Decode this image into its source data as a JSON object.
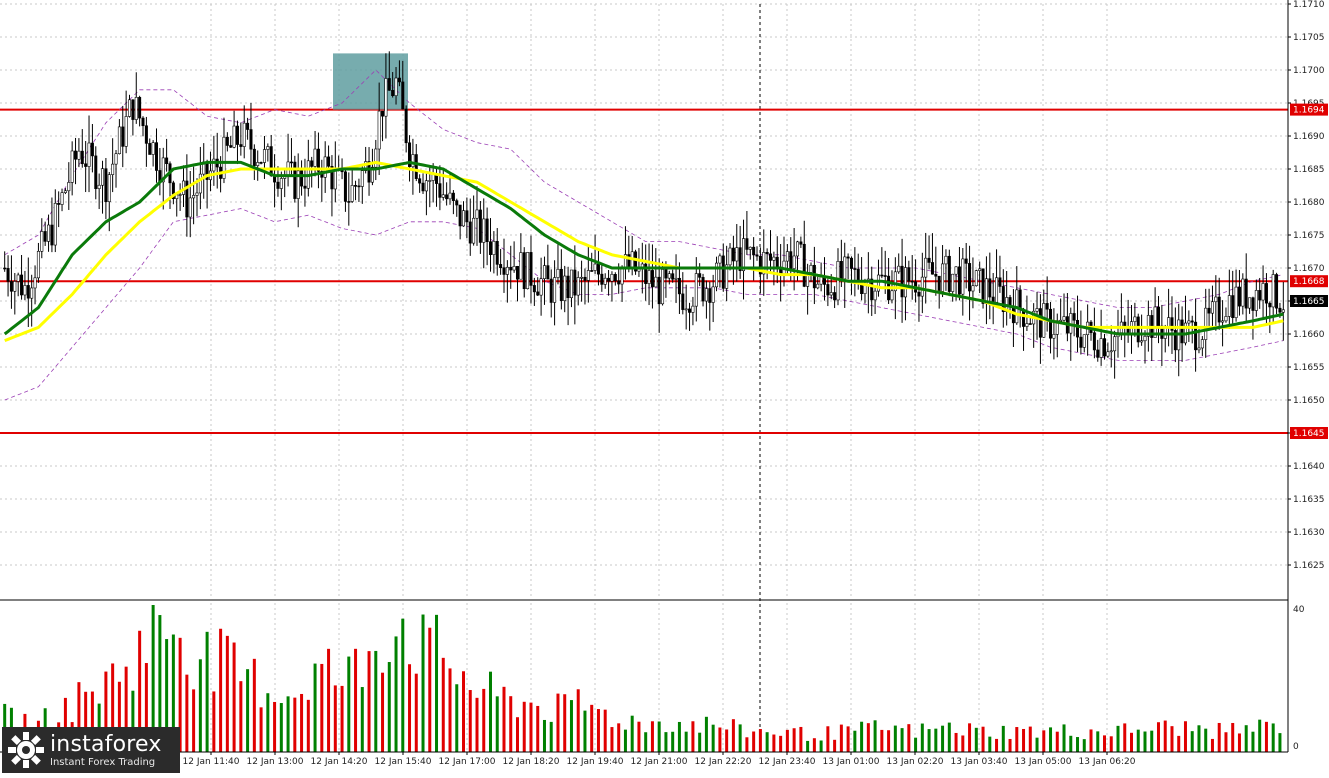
{
  "chart_data": [
    {
      "type": "candlestick",
      "instrument": "",
      "price_axis": {
        "min": 1.162,
        "max": 1.171,
        "ticks": [
          "1.1710",
          "1.1705",
          "1.1700",
          "1.1695",
          "1.1690",
          "1.1685",
          "1.1680",
          "1.1675",
          "1.1670",
          "1.1665",
          "1.1660",
          "1.1655",
          "1.1650",
          "1.1645",
          "1.1640",
          "1.1635",
          "1.1630",
          "1.1625"
        ]
      },
      "time_axis": {
        "ticks": [
          "12 Jan 11:40",
          "12 Jan 13:00",
          "12 Jan 14:20",
          "12 Jan 15:40",
          "12 Jan 17:00",
          "12 Jan 18:20",
          "12 Jan 19:40",
          "12 Jan 21:00",
          "12 Jan 22:20",
          "12 Jan 23:40",
          "13 Jan 01:00",
          "13 Jan 02:20",
          "13 Jan 03:40",
          "13 Jan 05:00",
          "13 Jan 06:20"
        ]
      },
      "horizontal_levels": [
        {
          "price": 1.1694,
          "label": "1.1694",
          "color": "#e00000"
        },
        {
          "price": 1.1668,
          "label": "1.1668",
          "color": "#e00000"
        },
        {
          "price": 1.1645,
          "label": "1.1645",
          "color": "#e00000"
        }
      ],
      "current_price": {
        "price": 1.1665,
        "label": "1.1665"
      },
      "highlight_zone": {
        "time_from": "12 Jan 14:45",
        "time_to": "12 Jan 15:55",
        "price_from": 1.1694,
        "price_to": 1.1701,
        "color": "#5f9ea0"
      },
      "vertical_marker": {
        "time": "12 Jan 23:40",
        "style": "dashed"
      },
      "close_path": [
        [
          0,
          1.167
        ],
        [
          6,
          1.1667
        ],
        [
          14,
          1.1676
        ],
        [
          22,
          1.1688
        ],
        [
          30,
          1.1683
        ],
        [
          38,
          1.1695
        ],
        [
          46,
          1.1686
        ],
        [
          54,
          1.168
        ],
        [
          62,
          1.1685
        ],
        [
          70,
          1.169
        ],
        [
          78,
          1.1686
        ],
        [
          86,
          1.1683
        ],
        [
          94,
          1.1686
        ],
        [
          102,
          1.1681
        ],
        [
          108,
          1.1686
        ],
        [
          112,
          1.1695
        ],
        [
          116,
          1.1698
        ],
        [
          120,
          1.1688
        ],
        [
          124,
          1.1684
        ],
        [
          128,
          1.1683
        ],
        [
          134,
          1.1678
        ],
        [
          140,
          1.1676
        ],
        [
          148,
          1.1672
        ],
        [
          156,
          1.1669
        ],
        [
          162,
          1.1667
        ],
        [
          170,
          1.1667
        ],
        [
          178,
          1.167
        ],
        [
          186,
          1.167
        ],
        [
          194,
          1.1667
        ],
        [
          202,
          1.1666
        ],
        [
          210,
          1.1668
        ],
        [
          218,
          1.1672
        ],
        [
          226,
          1.1671
        ],
        [
          234,
          1.1672
        ],
        [
          242,
          1.1667
        ],
        [
          250,
          1.1669
        ],
        [
          258,
          1.1668
        ],
        [
          266,
          1.1668
        ],
        [
          274,
          1.1669
        ],
        [
          282,
          1.1669
        ],
        [
          290,
          1.1667
        ],
        [
          298,
          1.1665
        ],
        [
          306,
          1.1662
        ],
        [
          314,
          1.1661
        ],
        [
          320,
          1.166
        ],
        [
          326,
          1.1659
        ],
        [
          332,
          1.166
        ],
        [
          338,
          1.1662
        ],
        [
          344,
          1.1661
        ],
        [
          350,
          1.166
        ],
        [
          356,
          1.1661
        ],
        [
          362,
          1.1665
        ],
        [
          368,
          1.1666
        ],
        [
          374,
          1.1667
        ],
        [
          379,
          1.1665
        ]
      ],
      "ma_green_path": [
        [
          0,
          1.166
        ],
        [
          10,
          1.1664
        ],
        [
          20,
          1.1672
        ],
        [
          30,
          1.1677
        ],
        [
          40,
          1.168
        ],
        [
          50,
          1.1685
        ],
        [
          60,
          1.1686
        ],
        [
          70,
          1.1686
        ],
        [
          80,
          1.1684
        ],
        [
          90,
          1.1684
        ],
        [
          100,
          1.1685
        ],
        [
          110,
          1.1685
        ],
        [
          120,
          1.1686
        ],
        [
          130,
          1.1685
        ],
        [
          140,
          1.1682
        ],
        [
          150,
          1.1679
        ],
        [
          160,
          1.1675
        ],
        [
          170,
          1.1672
        ],
        [
          180,
          1.167
        ],
        [
          190,
          1.167
        ],
        [
          200,
          1.167
        ],
        [
          210,
          1.167
        ],
        [
          220,
          1.167
        ],
        [
          230,
          1.167
        ],
        [
          240,
          1.1669
        ],
        [
          250,
          1.1668
        ],
        [
          260,
          1.1668
        ],
        [
          270,
          1.1667
        ],
        [
          280,
          1.1666
        ],
        [
          290,
          1.1665
        ],
        [
          300,
          1.1664
        ],
        [
          310,
          1.1662
        ],
        [
          320,
          1.1661
        ],
        [
          330,
          1.166
        ],
        [
          340,
          1.166
        ],
        [
          350,
          1.166
        ],
        [
          360,
          1.1661
        ],
        [
          370,
          1.1662
        ],
        [
          379,
          1.1663
        ]
      ],
      "ma_yellow_path": [
        [
          0,
          1.1659
        ],
        [
          10,
          1.1661
        ],
        [
          20,
          1.1666
        ],
        [
          30,
          1.1672
        ],
        [
          40,
          1.1677
        ],
        [
          50,
          1.1681
        ],
        [
          60,
          1.1684
        ],
        [
          70,
          1.1685
        ],
        [
          80,
          1.1685
        ],
        [
          90,
          1.1685
        ],
        [
          100,
          1.1685
        ],
        [
          110,
          1.1686
        ],
        [
          120,
          1.1685
        ],
        [
          130,
          1.1684
        ],
        [
          140,
          1.1683
        ],
        [
          150,
          1.168
        ],
        [
          160,
          1.1677
        ],
        [
          170,
          1.1674
        ],
        [
          180,
          1.1672
        ],
        [
          190,
          1.1671
        ],
        [
          200,
          1.167
        ],
        [
          210,
          1.167
        ],
        [
          220,
          1.167
        ],
        [
          230,
          1.1669
        ],
        [
          240,
          1.1669
        ],
        [
          250,
          1.1668
        ],
        [
          260,
          1.1667
        ],
        [
          270,
          1.1667
        ],
        [
          280,
          1.1666
        ],
        [
          290,
          1.1665
        ],
        [
          300,
          1.1663
        ],
        [
          310,
          1.1662
        ],
        [
          320,
          1.1661
        ],
        [
          330,
          1.1661
        ],
        [
          340,
          1.1661
        ],
        [
          350,
          1.1661
        ],
        [
          360,
          1.1661
        ],
        [
          370,
          1.1661
        ],
        [
          379,
          1.1662
        ]
      ],
      "bb_upper_path": [
        [
          0,
          1.1672
        ],
        [
          10,
          1.1675
        ],
        [
          20,
          1.1684
        ],
        [
          30,
          1.1692
        ],
        [
          40,
          1.1697
        ],
        [
          50,
          1.1697
        ],
        [
          60,
          1.1693
        ],
        [
          70,
          1.1692
        ],
        [
          80,
          1.1694
        ],
        [
          90,
          1.1693
        ],
        [
          100,
          1.1695
        ],
        [
          110,
          1.17
        ],
        [
          120,
          1.1695
        ],
        [
          130,
          1.1691
        ],
        [
          140,
          1.1689
        ],
        [
          150,
          1.1688
        ],
        [
          160,
          1.1683
        ],
        [
          170,
          1.168
        ],
        [
          180,
          1.1677
        ],
        [
          190,
          1.1674
        ],
        [
          200,
          1.1674
        ],
        [
          210,
          1.1673
        ],
        [
          220,
          1.1672
        ],
        [
          230,
          1.1672
        ],
        [
          240,
          1.1671
        ],
        [
          250,
          1.167
        ],
        [
          260,
          1.167
        ],
        [
          270,
          1.167
        ],
        [
          280,
          1.1669
        ],
        [
          290,
          1.1668
        ],
        [
          300,
          1.1667
        ],
        [
          310,
          1.1666
        ],
        [
          320,
          1.1665
        ],
        [
          330,
          1.1664
        ],
        [
          340,
          1.1664
        ],
        [
          350,
          1.1665
        ],
        [
          360,
          1.1666
        ],
        [
          370,
          1.1668
        ],
        [
          379,
          1.1669
        ]
      ],
      "bb_lower_path": [
        [
          0,
          1.165
        ],
        [
          10,
          1.1652
        ],
        [
          20,
          1.1658
        ],
        [
          30,
          1.1664
        ],
        [
          40,
          1.167
        ],
        [
          50,
          1.1677
        ],
        [
          60,
          1.1678
        ],
        [
          70,
          1.1679
        ],
        [
          80,
          1.1677
        ],
        [
          90,
          1.1678
        ],
        [
          100,
          1.1676
        ],
        [
          110,
          1.1675
        ],
        [
          120,
          1.1677
        ],
        [
          130,
          1.1677
        ],
        [
          140,
          1.1676
        ],
        [
          150,
          1.1672
        ],
        [
          160,
          1.1668
        ],
        [
          170,
          1.1666
        ],
        [
          180,
          1.1666
        ],
        [
          190,
          1.1667
        ],
        [
          200,
          1.1667
        ],
        [
          210,
          1.1667
        ],
        [
          220,
          1.1666
        ],
        [
          230,
          1.1666
        ],
        [
          240,
          1.1666
        ],
        [
          250,
          1.1665
        ],
        [
          260,
          1.1664
        ],
        [
          270,
          1.1663
        ],
        [
          280,
          1.1662
        ],
        [
          290,
          1.1661
        ],
        [
          300,
          1.166
        ],
        [
          310,
          1.1658
        ],
        [
          320,
          1.1657
        ],
        [
          330,
          1.1656
        ],
        [
          340,
          1.1656
        ],
        [
          350,
          1.1656
        ],
        [
          360,
          1.1657
        ],
        [
          370,
          1.1658
        ],
        [
          379,
          1.1659
        ]
      ],
      "colors": {
        "bull": "#000000",
        "bear": "#000000",
        "ma_fast": "#0a7a0a",
        "ma_slow": "#ffff00",
        "bands": "#9b3fb5",
        "level": "#e00000",
        "grid": "#c8c8c8",
        "current_badge": "#000000"
      }
    },
    {
      "type": "bar",
      "indicator": "volumes",
      "y_axis": {
        "min": 0,
        "max": 40,
        "ticks": [
          "40",
          "0"
        ]
      },
      "volume_profile": [
        [
          0,
          10
        ],
        [
          10,
          8
        ],
        [
          20,
          14
        ],
        [
          30,
          20
        ],
        [
          36,
          25
        ],
        [
          40,
          30
        ],
        [
          46,
          36
        ],
        [
          50,
          38
        ],
        [
          56,
          30
        ],
        [
          60,
          27
        ],
        [
          66,
          25
        ],
        [
          70,
          22
        ],
        [
          76,
          20
        ],
        [
          80,
          18
        ],
        [
          86,
          17
        ],
        [
          90,
          22
        ],
        [
          96,
          24
        ],
        [
          100,
          20
        ],
        [
          106,
          26
        ],
        [
          110,
          33
        ],
        [
          116,
          38
        ],
        [
          120,
          36
        ],
        [
          124,
          30
        ],
        [
          130,
          28
        ],
        [
          136,
          22
        ],
        [
          140,
          18
        ],
        [
          146,
          16
        ],
        [
          150,
          15
        ],
        [
          156,
          14
        ],
        [
          160,
          13
        ],
        [
          166,
          12
        ],
        [
          170,
          14
        ],
        [
          176,
          12
        ],
        [
          180,
          10
        ],
        [
          186,
          9
        ],
        [
          190,
          8
        ],
        [
          196,
          9
        ],
        [
          200,
          8
        ],
        [
          210,
          8
        ],
        [
          220,
          6
        ],
        [
          230,
          6
        ],
        [
          240,
          5
        ],
        [
          250,
          6
        ],
        [
          260,
          7
        ],
        [
          270,
          6
        ],
        [
          280,
          7
        ],
        [
          290,
          6
        ],
        [
          300,
          6
        ],
        [
          310,
          6
        ],
        [
          320,
          6
        ],
        [
          330,
          6
        ],
        [
          340,
          7
        ],
        [
          350,
          7
        ],
        [
          360,
          6
        ],
        [
          370,
          7
        ],
        [
          379,
          8
        ]
      ],
      "colors": {
        "up": "#008000",
        "down": "#e00000"
      }
    }
  ],
  "branding": {
    "name": "instaforex",
    "tagline": "Instant Forex Trading"
  }
}
